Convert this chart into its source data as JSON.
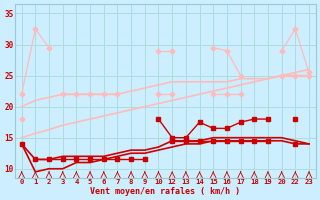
{
  "background_color": "#cceeff",
  "grid_color": "#aadddd",
  "x_labels": [
    "0",
    "1",
    "2",
    "3",
    "4",
    "5",
    "6",
    "7",
    "8",
    "9",
    "10",
    "12",
    "13",
    "14",
    "15",
    "16",
    "17",
    "18",
    "19",
    "20",
    "22",
    "23"
  ],
  "x_positions": [
    0,
    1,
    2,
    3,
    4,
    5,
    6,
    7,
    8,
    9,
    10,
    11,
    12,
    13,
    14,
    15,
    16,
    17,
    18,
    19,
    20,
    21
  ],
  "ylim": [
    8.5,
    36.5
  ],
  "yticks": [
    10,
    15,
    20,
    25,
    30,
    35
  ],
  "xlabel": "Vent moyen/en rafales ( km/h )",
  "xlabel_color": "#cc0000",
  "tick_color": "#cc0000",
  "lines": [
    {
      "color": "#ffbbbb",
      "marker": "D",
      "markersize": 2.5,
      "lw": 0.9,
      "segments": [
        [
          0,
          1,
          2
        ],
        [
          10,
          11
        ],
        [
          14,
          15,
          16
        ],
        [
          19
        ],
        [
          20,
          21
        ]
      ],
      "y": [
        22,
        32.5,
        29.5,
        null,
        null,
        null,
        null,
        null,
        null,
        null,
        29,
        29,
        null,
        null,
        29.5,
        29,
        25,
        null,
        null,
        29,
        32.5,
        25.5
      ]
    },
    {
      "color": "#ffbbbb",
      "marker": "D",
      "markersize": 2.5,
      "lw": 0.9,
      "y": [
        18,
        null,
        null,
        22,
        22,
        22,
        22,
        22,
        null,
        null,
        22,
        22,
        null,
        null,
        22,
        22,
        22,
        null,
        null,
        25,
        25,
        25
      ]
    },
    {
      "color": "#ffbbbb",
      "marker": null,
      "lw": 1.2,
      "y": [
        15,
        15.7,
        16.3,
        17,
        17.5,
        18,
        18.5,
        19,
        19.5,
        20,
        20.5,
        21,
        21.5,
        22,
        22.5,
        23,
        23.5,
        24,
        24.5,
        25,
        25.5,
        26
      ]
    },
    {
      "color": "#ffbbbb",
      "marker": null,
      "lw": 1.2,
      "y": [
        20,
        21,
        21.5,
        22,
        22,
        22,
        22,
        22,
        22.5,
        23,
        23.5,
        24,
        24,
        24,
        24,
        24,
        24.5,
        24.5,
        24.5,
        25,
        25,
        25
      ]
    },
    {
      "color": "#cc0000",
      "marker": "s",
      "markersize": 2.5,
      "lw": 1.0,
      "y": [
        14,
        null,
        null,
        null,
        null,
        null,
        null,
        null,
        null,
        null,
        18,
        15,
        15,
        17.5,
        16.5,
        16.5,
        17.5,
        18,
        18,
        null,
        18,
        null
      ]
    },
    {
      "color": "#cc0000",
      "marker": "s",
      "markersize": 2.5,
      "lw": 1.0,
      "y": [
        null,
        11.5,
        11.5,
        11.5,
        11.5,
        11.5,
        11.5,
        11.5,
        11.5,
        11.5,
        null,
        14.5,
        14.5,
        14.5,
        14.5,
        14.5,
        14.5,
        14.5,
        14.5,
        null,
        14,
        null
      ]
    },
    {
      "color": "#cc0000",
      "marker": null,
      "lw": 1.2,
      "y": [
        14,
        9.5,
        10,
        10,
        11,
        11,
        11.5,
        12,
        12.5,
        12.5,
        13,
        13.5,
        14,
        14,
        14.5,
        14.5,
        14.5,
        14.5,
        14.5,
        14.5,
        14,
        14
      ]
    },
    {
      "color": "#cc0000",
      "marker": null,
      "lw": 1.2,
      "y": [
        14,
        11.5,
        11.5,
        12,
        12,
        12,
        12,
        12.5,
        13,
        13,
        13.5,
        14.5,
        14.5,
        14.5,
        15,
        15,
        15,
        15,
        15,
        15,
        14.5,
        14
      ]
    }
  ],
  "arrow_color": "#cc0000"
}
